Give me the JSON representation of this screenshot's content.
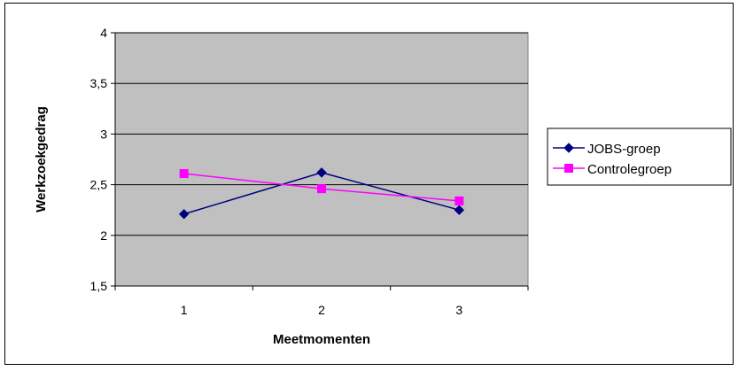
{
  "chart_data": {
    "type": "line",
    "title": "",
    "xlabel": "Meetmomenten",
    "ylabel": "Werkzoekgedrag",
    "categories": [
      "1",
      "2",
      "3"
    ],
    "yticks": [
      "1,5",
      "2",
      "2,5",
      "3",
      "3,5",
      "4"
    ],
    "ylim": [
      1.5,
      4
    ],
    "grid": "horizontal",
    "legend_position": "right",
    "plot_background": "#c0c0c0",
    "series": [
      {
        "name": "JOBS-groep",
        "values": [
          2.21,
          2.62,
          2.25
        ],
        "color": "#000080",
        "marker": "diamond"
      },
      {
        "name": "Controlegroep",
        "values": [
          2.61,
          2.46,
          2.34
        ],
        "color": "#ff00ff",
        "marker": "square"
      }
    ]
  }
}
